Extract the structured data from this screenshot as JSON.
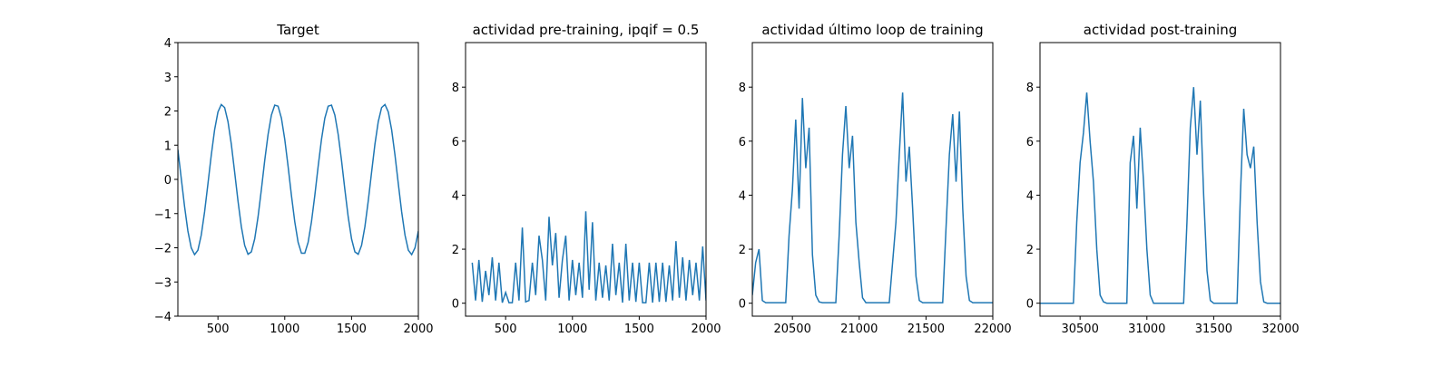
{
  "chart_data": [
    {
      "type": "line",
      "title": "Target",
      "color": "#1f77b4",
      "x": [
        200,
        225,
        250,
        275,
        300,
        325,
        350,
        375,
        400,
        425,
        450,
        475,
        500,
        525,
        550,
        575,
        600,
        625,
        650,
        675,
        700,
        725,
        750,
        775,
        800,
        825,
        850,
        875,
        900,
        925,
        950,
        975,
        1000,
        1025,
        1050,
        1075,
        1100,
        1125,
        1150,
        1175,
        1200,
        1225,
        1250,
        1275,
        1300,
        1325,
        1350,
        1375,
        1400,
        1425,
        1450,
        1475,
        1500,
        1525,
        1550,
        1575,
        1600,
        1625,
        1650,
        1675,
        1700,
        1725,
        1750,
        1775,
        1800,
        1825,
        1850,
        1875,
        1900,
        1925,
        1950,
        1975,
        2000
      ],
      "values": [
        0.87,
        0.04,
        -0.79,
        -1.51,
        -2.0,
        -2.2,
        -2.07,
        -1.63,
        -0.95,
        -0.13,
        0.71,
        1.45,
        1.97,
        2.19,
        2.1,
        1.69,
        1.03,
        0.21,
        -0.63,
        -1.38,
        -1.93,
        -2.19,
        -2.12,
        -1.74,
        -1.1,
        -0.3,
        0.55,
        1.31,
        1.88,
        2.17,
        2.14,
        1.79,
        1.17,
        0.38,
        -0.47,
        -1.24,
        -1.84,
        -2.16,
        -2.16,
        -1.84,
        -1.24,
        -0.47,
        0.38,
        1.17,
        1.79,
        2.14,
        2.17,
        1.88,
        1.31,
        0.55,
        -0.3,
        -1.1,
        -1.74,
        -2.12,
        -2.19,
        -1.93,
        -1.38,
        -0.63,
        0.21,
        1.03,
        1.69,
        2.1,
        2.19,
        1.97,
        1.45,
        0.71,
        -0.13,
        -0.95,
        -1.63,
        -2.07,
        -2.2,
        -2.0,
        -1.51
      ],
      "xlim": [
        200,
        2000
      ],
      "xticks": [
        500,
        1000,
        1500,
        2000
      ],
      "ylim": [
        -4,
        4
      ],
      "yticks": [
        {
          "value": -4,
          "label": "−4"
        },
        {
          "value": -3,
          "label": "−3"
        },
        {
          "value": -2,
          "label": "−2"
        },
        {
          "value": -1,
          "label": "−1"
        },
        0,
        1,
        2,
        3,
        4
      ]
    },
    {
      "type": "line",
      "title": "actividad pre-training, ipqif = 0.5",
      "color": "#1f77b4",
      "x": [
        200,
        225,
        250,
        275,
        300,
        325,
        350,
        375,
        400,
        425,
        450,
        475,
        500,
        525,
        550,
        575,
        600,
        625,
        650,
        675,
        700,
        725,
        750,
        775,
        800,
        825,
        850,
        875,
        900,
        925,
        950,
        975,
        1000,
        1025,
        1050,
        1075,
        1100,
        1125,
        1150,
        1175,
        1200,
        1225,
        1250,
        1275,
        1300,
        1325,
        1350,
        1375,
        1400,
        1425,
        1450,
        1475,
        1500,
        1525,
        1550,
        1575,
        1600,
        1625,
        1650,
        1675,
        1700,
        1725,
        1750,
        1775,
        1800,
        1825,
        1850,
        1875,
        1900,
        1925,
        1950,
        1975,
        2000
      ],
      "values": [
        null,
        null,
        1.5,
        0.1,
        1.6,
        0.05,
        1.2,
        0.3,
        1.7,
        0.1,
        1.5,
        0.02,
        0.4,
        0.02,
        0.02,
        1.5,
        0.1,
        2.8,
        0.05,
        0.1,
        1.5,
        0.3,
        2.5,
        1.6,
        0.1,
        3.2,
        1.4,
        2.6,
        0.2,
        1.6,
        2.5,
        0.1,
        1.6,
        0.3,
        1.5,
        0.2,
        3.4,
        0.5,
        3.0,
        0.1,
        1.5,
        0.2,
        1.4,
        0.1,
        2.2,
        0.3,
        1.5,
        0.02,
        2.2,
        0.1,
        1.5,
        0.05,
        1.5,
        0.02,
        0.02,
        1.5,
        0.02,
        1.5,
        0.05,
        1.5,
        0.05,
        1.4,
        0.1,
        2.3,
        0.2,
        1.7,
        0.1,
        1.6,
        0.3,
        1.5,
        0.1,
        2.1,
        0.1
      ],
      "xlim": [
        200,
        2000
      ],
      "xticks": [
        500,
        1000,
        1500,
        2000
      ],
      "ylim": [
        -0.48,
        9.65
      ],
      "yticks": [
        0,
        2,
        4,
        6,
        8
      ]
    },
    {
      "type": "line",
      "title": "actividad último loop de training",
      "color": "#1f77b4",
      "x": [
        20200,
        20225,
        20250,
        20275,
        20300,
        20325,
        20350,
        20375,
        20400,
        20425,
        20450,
        20475,
        20500,
        20525,
        20550,
        20575,
        20600,
        20625,
        20650,
        20675,
        20700,
        20725,
        20750,
        20775,
        20800,
        20825,
        20850,
        20875,
        20900,
        20925,
        20950,
        20975,
        21000,
        21025,
        21050,
        21075,
        21100,
        21125,
        21150,
        21175,
        21200,
        21225,
        21250,
        21275,
        21300,
        21325,
        21350,
        21375,
        21400,
        21425,
        21450,
        21475,
        21500,
        21525,
        21550,
        21575,
        21600,
        21625,
        21650,
        21675,
        21700,
        21725,
        21750,
        21775,
        21800,
        21825,
        21850,
        21875,
        21900,
        21925,
        21950,
        21975,
        22000
      ],
      "values": [
        0.3,
        1.5,
        2.0,
        0.1,
        0.02,
        0.02,
        0.02,
        0.02,
        0.02,
        0.02,
        0.02,
        2.5,
        4.2,
        6.8,
        3.5,
        7.6,
        5.0,
        6.5,
        1.8,
        0.3,
        0.05,
        0.02,
        0.02,
        0.02,
        0.02,
        0.02,
        2.5,
        5.5,
        7.3,
        5.0,
        6.2,
        3.0,
        1.5,
        0.2,
        0.02,
        0.02,
        0.02,
        0.02,
        0.02,
        0.02,
        0.02,
        0.02,
        1.5,
        3.0,
        5.5,
        7.8,
        4.5,
        5.8,
        3.5,
        1.0,
        0.1,
        0.02,
        0.02,
        0.02,
        0.02,
        0.02,
        0.02,
        0.02,
        2.8,
        5.5,
        7.0,
        4.5,
        7.1,
        3.5,
        1.0,
        0.1,
        0.02,
        0.02,
        0.02,
        0.02,
        0.02,
        0.02,
        0.02
      ],
      "xlim": [
        20200,
        22000
      ],
      "xticks": [
        20500,
        21000,
        21500,
        22000
      ],
      "ylim": [
        -0.48,
        9.65
      ],
      "yticks": [
        0,
        2,
        4,
        6,
        8
      ]
    },
    {
      "type": "line",
      "title": "actividad post-training",
      "color": "#1f77b4",
      "x": [
        30200,
        30225,
        30250,
        30275,
        30300,
        30325,
        30350,
        30375,
        30400,
        30425,
        30450,
        30475,
        30500,
        30525,
        30550,
        30575,
        30600,
        30625,
        30650,
        30675,
        30700,
        30725,
        30750,
        30775,
        30800,
        30825,
        30850,
        30875,
        30900,
        30925,
        30950,
        30975,
        31000,
        31025,
        31050,
        31075,
        31100,
        31125,
        31150,
        31175,
        31200,
        31225,
        31250,
        31275,
        31300,
        31325,
        31350,
        31375,
        31400,
        31425,
        31450,
        31475,
        31500,
        31525,
        31550,
        31575,
        31600,
        31625,
        31650,
        31675,
        31700,
        31725,
        31750,
        31775,
        31800,
        31825,
        31850,
        31875,
        31900,
        31925,
        31950,
        31975,
        32000
      ],
      "values": [
        0,
        0,
        0,
        0,
        0,
        0,
        0,
        0,
        0,
        0,
        0,
        3.0,
        5.2,
        6.3,
        7.8,
        6.0,
        4.5,
        2.0,
        0.3,
        0.05,
        0,
        0,
        0,
        0,
        0,
        0,
        0,
        5.2,
        6.2,
        3.5,
        6.5,
        4.5,
        2.0,
        0.3,
        0,
        0,
        0,
        0,
        0,
        0,
        0,
        0,
        0,
        0,
        3.0,
        6.5,
        8.0,
        5.5,
        7.5,
        4.0,
        1.2,
        0.1,
        0,
        0,
        0,
        0,
        0,
        0,
        0,
        0,
        4.0,
        7.2,
        5.5,
        5.0,
        5.8,
        3.0,
        0.8,
        0.05,
        0,
        0,
        0,
        0,
        0
      ],
      "xlim": [
        30200,
        32000
      ],
      "xticks": [
        30500,
        31000,
        31500,
        32000
      ],
      "ylim": [
        -0.48,
        9.65
      ],
      "yticks": [
        0,
        2,
        4,
        6,
        8
      ]
    }
  ]
}
